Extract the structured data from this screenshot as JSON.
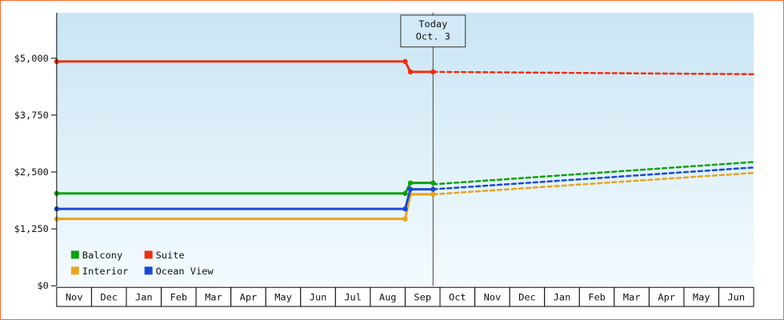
{
  "frame": {
    "border_color": "#ff6a2a",
    "plot_gradient_top": "#c9e5f4",
    "plot_gradient_bottom": "#f4fbfe",
    "axis_color": "#000000",
    "today_line_color": "#444444",
    "today_box_fill": "#d2e9f6"
  },
  "chart_data": {
    "type": "line",
    "title": "",
    "xlabel": "",
    "ylabel": "",
    "grid": false,
    "x_axis": {
      "months": [
        "Nov",
        "Dec",
        "Jan",
        "Feb",
        "Mar",
        "Apr",
        "May",
        "Jun",
        "Jul",
        "Aug",
        "Sep",
        "Oct",
        "Nov",
        "Dec",
        "Jan",
        "Feb",
        "Mar",
        "Apr",
        "May",
        "Jun"
      ]
    },
    "y_axis": {
      "max": 6000,
      "ticks": [
        {
          "label": "$0",
          "value": 0
        },
        {
          "label": "$1,250",
          "value": 1250
        },
        {
          "label": "$2,500",
          "value": 2500
        },
        {
          "label": "$3,750",
          "value": 3750
        },
        {
          "label": "$5,000",
          "value": 5000
        }
      ]
    },
    "today": {
      "label_line1": "Today",
      "label_line2": "Oct. 3",
      "x_months": 10.8
    },
    "series": [
      {
        "name": "Balcony",
        "color": "#0da10d",
        "historical": [
          [
            0,
            2030
          ],
          [
            10.0,
            2030
          ],
          [
            10.15,
            2260
          ],
          [
            10.8,
            2260
          ]
        ],
        "forecast": [
          [
            10.8,
            2230
          ],
          [
            20,
            2720
          ]
        ]
      },
      {
        "name": "Suite",
        "color": "#ee2e0e",
        "historical": [
          [
            0,
            4930
          ],
          [
            10.0,
            4930
          ],
          [
            10.15,
            4700
          ],
          [
            10.8,
            4700
          ]
        ],
        "forecast": [
          [
            10.8,
            4700
          ],
          [
            20,
            4650
          ]
        ]
      },
      {
        "name": "Interior",
        "color": "#e8a41c",
        "historical": [
          [
            0,
            1470
          ],
          [
            10.0,
            1470
          ],
          [
            10.15,
            2010
          ],
          [
            10.8,
            2010
          ]
        ],
        "forecast": [
          [
            10.8,
            2010
          ],
          [
            20,
            2480
          ]
        ]
      },
      {
        "name": "Ocean View",
        "color": "#1b48d8",
        "historical": [
          [
            0,
            1690
          ],
          [
            10.0,
            1690
          ],
          [
            10.15,
            2120
          ],
          [
            10.8,
            2120
          ]
        ],
        "forecast": [
          [
            10.8,
            2120
          ],
          [
            20,
            2600
          ]
        ]
      }
    ],
    "legend": {
      "position": "bottom-left",
      "rows": [
        [
          "Balcony",
          "Suite"
        ],
        [
          "Interior",
          "Ocean View"
        ]
      ]
    }
  }
}
